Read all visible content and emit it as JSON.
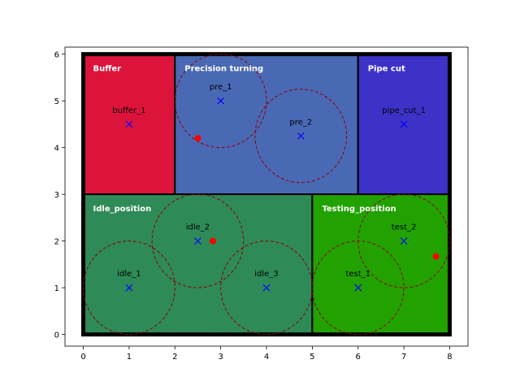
{
  "chart_data": {
    "type": "scatter",
    "title": "",
    "xlabel": "",
    "ylabel": "",
    "xlim": [
      -0.4,
      8.4
    ],
    "ylim": [
      -0.25,
      6.15
    ],
    "xticks": [
      0,
      1,
      2,
      3,
      4,
      5,
      6,
      7,
      8
    ],
    "yticks": [
      0,
      1,
      2,
      3,
      4,
      5,
      6
    ],
    "grid": false,
    "outer_border": {
      "x0": 0,
      "y0": 0,
      "x1": 8,
      "y1": 6,
      "color": "#000000"
    },
    "regions": [
      {
        "name": "Buffer",
        "x0": 0,
        "y0": 3,
        "x1": 2,
        "y1": 6,
        "color": "#dc143c"
      },
      {
        "name": "Precision turning",
        "x0": 2,
        "y0": 3,
        "x1": 6,
        "y1": 6,
        "color": "#4a69b4"
      },
      {
        "name": "Pipe cut",
        "x0": 6,
        "y0": 3,
        "x1": 8,
        "y1": 6,
        "color": "#3c32c8"
      },
      {
        "name": "Idle_position",
        "x0": 0,
        "y0": 0,
        "x1": 5,
        "y1": 3,
        "color": "#2e8b57"
      },
      {
        "name": "Testing_position",
        "x0": 5,
        "y0": 0,
        "x1": 8,
        "y1": 3,
        "color": "#22a200"
      }
    ],
    "stations": [
      {
        "name": "buffer_1",
        "x": 1,
        "y": 4.5,
        "radius": null
      },
      {
        "name": "pre_1",
        "x": 3,
        "y": 5,
        "radius": 1
      },
      {
        "name": "pre_2",
        "x": 4.75,
        "y": 4.25,
        "radius": 1
      },
      {
        "name": "pipe_cut_1",
        "x": 7,
        "y": 4.5,
        "radius": null
      },
      {
        "name": "idle_1",
        "x": 1,
        "y": 1,
        "radius": 1
      },
      {
        "name": "idle_2",
        "x": 2.5,
        "y": 2,
        "radius": 1
      },
      {
        "name": "idle_3",
        "x": 4,
        "y": 1,
        "radius": 1
      },
      {
        "name": "test_1",
        "x": 6,
        "y": 1,
        "radius": 1
      },
      {
        "name": "test_2",
        "x": 7,
        "y": 2,
        "radius": 1
      }
    ],
    "red_points": [
      {
        "x": 2.5,
        "y": 4.2
      },
      {
        "x": 2.83,
        "y": 2.0
      },
      {
        "x": 7.7,
        "y": 1.67
      }
    ],
    "colors": {
      "marker": "#0000ff",
      "red_point": "#ff0000",
      "circle": "#8b0000",
      "region_label": "#ffffff"
    }
  }
}
